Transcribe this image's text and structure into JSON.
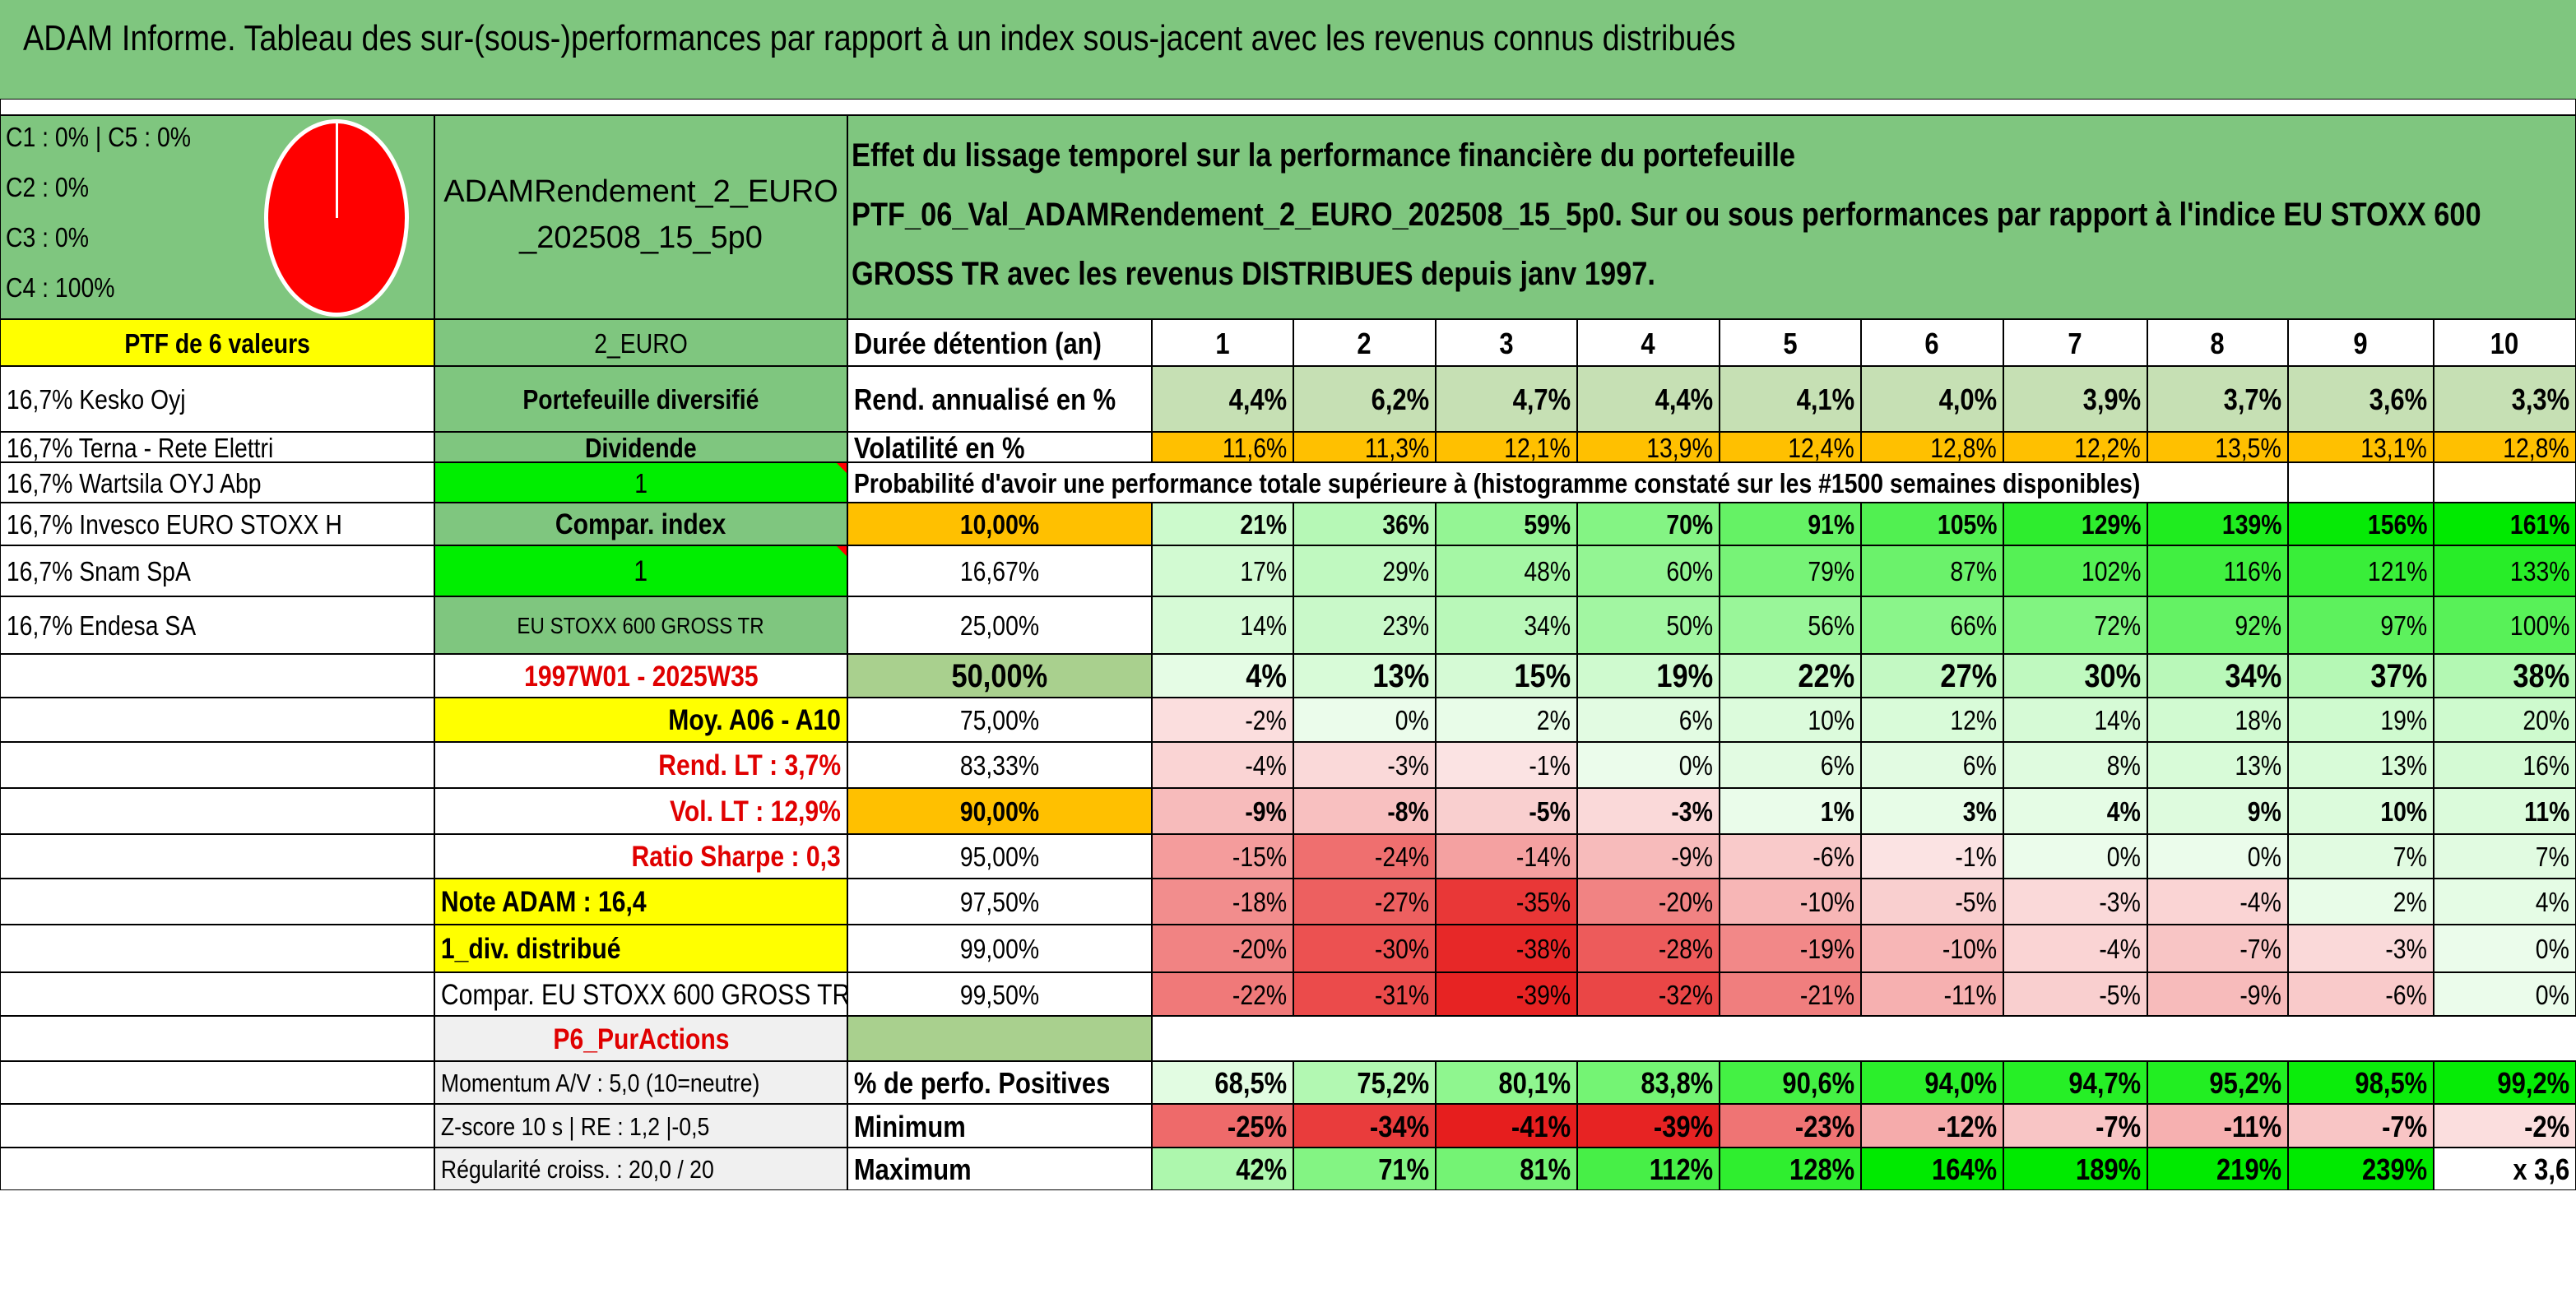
{
  "title": "ADAM Informe. Tableau des sur-(sous-)performances par rapport à un index sous-jacent avec les revenus connus distribués",
  "pie": {
    "lines": [
      "C1 : 0% | C5 : 0%",
      "C2 : 0%",
      "C3 : 0%",
      "C4 : 100%"
    ],
    "color": "#ff0000"
  },
  "portfolio": {
    "name": "ADAMRendement_2_EURO_202508_15_5p0",
    "description": "Effet du lissage temporel sur la performance financière du portefeuille PTF_06_Val_ADAMRendement_2_EURO_202508_15_5p0. Sur ou sous performances par rapport à l'indice EU STOXX 600 GROSS TR avec les revenus DISTRIBUES depuis janv 1997.",
    "ptf_label": "PTF de 6 valeurs",
    "holdings": [
      "16,7% Kesko Oyj",
      "16,7% Terna - Rete Elettri",
      "16,7% Wartsila OYJ Abp",
      "16,7% Invesco EURO STOXX H",
      "16,7% Snam SpA",
      "16,7% Endesa SA"
    ],
    "currency": "2_EURO",
    "type": "Portefeuille diversifié",
    "dividend_label": "Dividende",
    "dividend_value": "1",
    "compar_label": "Compar. index",
    "compar_value": "1",
    "index_name": "EU STOXX 600 GROSS TR",
    "period": "1997W01 - 2025W35",
    "moy": "Moy. A06 - A10",
    "rend_lt": "Rend. LT : 3,7%",
    "vol_lt": "Vol. LT : 12,9%",
    "sharpe": "Ratio Sharpe : 0,3",
    "note": "Note ADAM : 16,4",
    "div": "1_div. distribué",
    "compar_index": "Compar. EU STOXX 600 GROSS TR",
    "p6": "P6_PurActions",
    "momentum": "Momentum A/V : 5,0 (10=neutre)",
    "zscore": "Z-score 10 s | RE : 1,2 |-0,5",
    "regularite": "Régularité croiss. : 20,0 / 20"
  },
  "table": {
    "duration_label": "Durée détention (an)",
    "years": [
      "1",
      "2",
      "3",
      "4",
      "5",
      "6",
      "7",
      "8",
      "9",
      "10"
    ],
    "rend_label": "Rend. annualisé en %",
    "rend": [
      "4,4%",
      "6,2%",
      "4,7%",
      "4,4%",
      "4,1%",
      "4,0%",
      "3,9%",
      "3,7%",
      "3,6%",
      "3,3%"
    ],
    "vol_label": "Volatilité en %",
    "vol": [
      "11,6%",
      "11,3%",
      "12,1%",
      "13,9%",
      "12,4%",
      "12,8%",
      "12,2%",
      "13,5%",
      "13,1%",
      "12,8%"
    ],
    "prob_label": "Probabilité d'avoir une performance totale supérieure à (histogramme constaté sur les #1500 semaines disponibles)",
    "quantiles": [
      {
        "p": "10,00%",
        "v": [
          "21%",
          "36%",
          "59%",
          "70%",
          "91%",
          "105%",
          "129%",
          "139%",
          "156%",
          "161%"
        ]
      },
      {
        "p": "16,67%",
        "v": [
          "17%",
          "29%",
          "48%",
          "60%",
          "79%",
          "87%",
          "102%",
          "116%",
          "121%",
          "133%"
        ]
      },
      {
        "p": "25,00%",
        "v": [
          "14%",
          "23%",
          "34%",
          "50%",
          "56%",
          "66%",
          "72%",
          "92%",
          "97%",
          "100%"
        ]
      },
      {
        "p": "50,00%",
        "v": [
          "4%",
          "13%",
          "15%",
          "19%",
          "22%",
          "27%",
          "30%",
          "34%",
          "37%",
          "38%"
        ]
      },
      {
        "p": "75,00%",
        "v": [
          "-2%",
          "0%",
          "2%",
          "6%",
          "10%",
          "12%",
          "14%",
          "18%",
          "19%",
          "20%"
        ]
      },
      {
        "p": "83,33%",
        "v": [
          "-4%",
          "-3%",
          "-1%",
          "0%",
          "6%",
          "6%",
          "8%",
          "13%",
          "13%",
          "16%"
        ]
      },
      {
        "p": "90,00%",
        "v": [
          "-9%",
          "-8%",
          "-5%",
          "-3%",
          "1%",
          "3%",
          "4%",
          "9%",
          "10%",
          "11%"
        ]
      },
      {
        "p": "95,00%",
        "v": [
          "-15%",
          "-24%",
          "-14%",
          "-9%",
          "-6%",
          "-1%",
          "0%",
          "0%",
          "7%",
          "7%"
        ]
      },
      {
        "p": "97,50%",
        "v": [
          "-18%",
          "-27%",
          "-35%",
          "-20%",
          "-10%",
          "-5%",
          "-3%",
          "-4%",
          "2%",
          "4%"
        ]
      },
      {
        "p": "99,00%",
        "v": [
          "-20%",
          "-30%",
          "-38%",
          "-28%",
          "-19%",
          "-10%",
          "-4%",
          "-7%",
          "-3%",
          "0%"
        ]
      },
      {
        "p": "99,50%",
        "v": [
          "-22%",
          "-31%",
          "-39%",
          "-32%",
          "-21%",
          "-11%",
          "-5%",
          "-9%",
          "-6%",
          "0%"
        ]
      }
    ],
    "pos_label": "% de perfo. Positives",
    "pos": [
      "68,5%",
      "75,2%",
      "80,1%",
      "83,8%",
      "90,6%",
      "94,0%",
      "94,7%",
      "95,2%",
      "98,5%",
      "99,2%"
    ],
    "min_label": "Minimum",
    "min": [
      "-25%",
      "-34%",
      "-41%",
      "-39%",
      "-23%",
      "-12%",
      "-7%",
      "-11%",
      "-7%",
      "-2%"
    ],
    "max_label": "Maximum",
    "max": [
      "42%",
      "71%",
      "81%",
      "112%",
      "128%",
      "164%",
      "189%",
      "219%",
      "239%",
      "x 3,6"
    ]
  },
  "colors": {
    "header_green": "#7fc67f",
    "yellow": "#ffff00",
    "orange": "#ffc000",
    "bright_green": "#00ee00",
    "red_text": "#e00000",
    "grey": "#f0f0f0"
  }
}
